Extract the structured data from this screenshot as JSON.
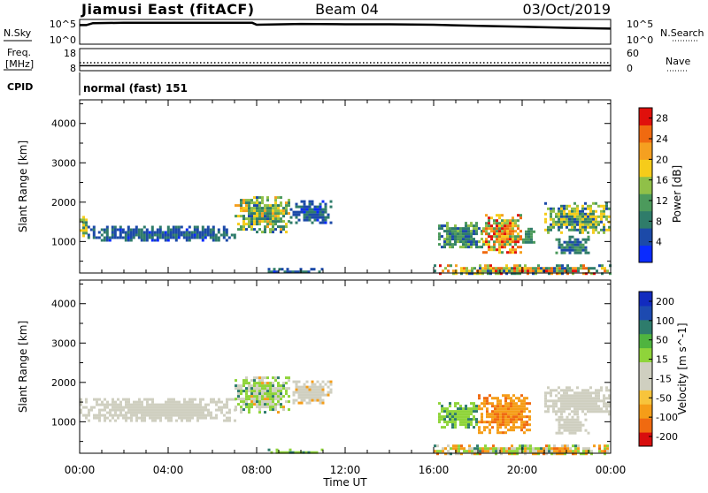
{
  "header": {
    "station": "Jiamusi East (fitACF)",
    "beam": "Beam 04",
    "date": "03/Oct/2019"
  },
  "labels": {
    "nsky": "N.Sky",
    "nsearch": "N.Search",
    "freq_line1": "Freq.",
    "freq_line2": "[MHz]",
    "nave": "Nave",
    "cpid": "CPID",
    "cpid_value": "normal (fast) 151",
    "nsky_tick_top": "10^5",
    "nsky_tick_bottom": "10^0",
    "nsearch_tick_top": "10^5",
    "nsearch_tick_bottom": "10^0",
    "freq_tick_top": "18",
    "freq_tick_bottom": "8",
    "nave_tick_top": "60",
    "nave_tick_bottom": "0"
  },
  "colors": {
    "power": [
      "#0a2bff",
      "#1c4aa8",
      "#2f7c6a",
      "#4c9a5c",
      "#90c048",
      "#f6cc1a",
      "#f5a020",
      "#f06a10",
      "#e0100c"
    ],
    "velocity": [
      "#d80e0e",
      "#f06a10",
      "#f59d18",
      "#f7c43c",
      "#cfcfc0",
      "#cfcfc0",
      "#8fd43a",
      "#4fb43f",
      "#2e7c6c",
      "#1d4ab0",
      "#122bbf"
    ]
  },
  "chart_data": [
    {
      "type": "line",
      "title": "N.Sky / N.Search",
      "x_range": [
        "00:00",
        "24:00"
      ],
      "y_scale": "log",
      "series": [
        {
          "name": "N.Sky",
          "x": [
            0,
            0.3,
            0.6,
            2,
            4,
            6,
            7.8,
            8,
            10,
            12,
            14,
            16,
            18,
            20,
            22,
            24
          ],
          "y": [
            4.0,
            4.0,
            4.5,
            4.6,
            4.6,
            4.6,
            4.6,
            4.1,
            4.3,
            4.2,
            4.2,
            4.1,
            3.8,
            3.6,
            3.3,
            3.1
          ]
        }
      ]
    },
    {
      "type": "line",
      "title": "Freq. / Nave",
      "x_range": [
        "00:00",
        "24:00"
      ],
      "series": [
        {
          "name": "Freq.",
          "y_const": 10
        },
        {
          "name": "Nave",
          "y_const": 21
        }
      ]
    },
    {
      "type": "heatmap",
      "title": "Power [dB]",
      "ylabel": "Slant Range [km]",
      "xlabel": "Time UT",
      "x_ticks": [
        "00:00",
        "04:00",
        "08:00",
        "12:00",
        "16:00",
        "20:00",
        "00:00"
      ],
      "y_ticks": [
        1000,
        2000,
        3000,
        4000
      ],
      "ylim": [
        200,
        4600
      ],
      "colorbar_label": "Power [dB]",
      "colorbar_ticks": [
        4,
        8,
        12,
        16,
        20,
        24,
        28
      ],
      "colorbar_range": [
        0,
        30
      ],
      "patches": [
        {
          "t0": 0.0,
          "t1": 0.35,
          "r0": 1100,
          "r1": 1650,
          "vmin": 8,
          "vmax": 20
        },
        {
          "t0": 0.35,
          "t1": 7.0,
          "r0": 1050,
          "r1": 1400,
          "vmin": 3,
          "vmax": 9
        },
        {
          "t0": 7.0,
          "t1": 9.5,
          "r0": 1250,
          "r1": 2150,
          "vmin": 6,
          "vmax": 22
        },
        {
          "t0": 9.5,
          "t1": 11.3,
          "r0": 1500,
          "r1": 2050,
          "vmin": 3,
          "vmax": 10
        },
        {
          "t0": 16.2,
          "t1": 18.2,
          "r0": 850,
          "r1": 1500,
          "vmin": 4,
          "vmax": 16
        },
        {
          "t0": 18.2,
          "t1": 20.0,
          "r0": 750,
          "r1": 1700,
          "vmin": 10,
          "vmax": 30
        },
        {
          "t0": 20.0,
          "t1": 20.5,
          "r0": 950,
          "r1": 1350,
          "vmin": 6,
          "vmax": 14
        },
        {
          "t0": 21.0,
          "t1": 24.0,
          "r0": 1250,
          "r1": 2000,
          "vmin": 4,
          "vmax": 20
        },
        {
          "t0": 21.5,
          "t1": 23.0,
          "r0": 700,
          "r1": 1150,
          "vmin": 4,
          "vmax": 12
        },
        {
          "t0": 8.5,
          "t1": 11.0,
          "r0": 200,
          "r1": 330,
          "vmin": 3,
          "vmax": 8
        },
        {
          "t0": 16.0,
          "t1": 24.0,
          "r0": 200,
          "r1": 420,
          "vmin": 4,
          "vmax": 28
        }
      ]
    },
    {
      "type": "heatmap",
      "title": "Velocity [m s^-1]",
      "ylabel": "Slant Range [km]",
      "xlabel": "Time UT",
      "x_ticks": [
        "00:00",
        "04:00",
        "08:00",
        "12:00",
        "16:00",
        "20:00",
        "00:00"
      ],
      "y_ticks": [
        1000,
        2000,
        3000,
        4000
      ],
      "ylim": [
        200,
        4600
      ],
      "colorbar_label": "Velocity [m s^-1]",
      "colorbar_ticks": [
        200,
        100,
        50,
        15,
        -15,
        -50,
        -100,
        -200
      ],
      "patches": [
        {
          "t0": 0.0,
          "t1": 7.0,
          "r0": 1050,
          "r1": 1600,
          "vmin": -10,
          "vmax": 10
        },
        {
          "t0": 7.0,
          "t1": 9.5,
          "r0": 1250,
          "r1": 2150,
          "vmin": -20,
          "vmax": 60
        },
        {
          "t0": 9.5,
          "t1": 11.3,
          "r0": 1500,
          "r1": 2050,
          "vmin": -20,
          "vmax": 10
        },
        {
          "t0": 16.2,
          "t1": 18.0,
          "r0": 850,
          "r1": 1500,
          "vmin": 20,
          "vmax": 60
        },
        {
          "t0": 18.0,
          "t1": 20.3,
          "r0": 750,
          "r1": 1700,
          "vmin": -60,
          "vmax": -20
        },
        {
          "t0": 21.0,
          "t1": 24.0,
          "r0": 1200,
          "r1": 1900,
          "vmin": -10,
          "vmax": 10
        },
        {
          "t0": 21.5,
          "t1": 23.0,
          "r0": 700,
          "r1": 1150,
          "vmin": -15,
          "vmax": 10
        },
        {
          "t0": 8.5,
          "t1": 11.0,
          "r0": 200,
          "r1": 320,
          "vmin": 20,
          "vmax": 60
        },
        {
          "t0": 16.0,
          "t1": 24.0,
          "r0": 200,
          "r1": 420,
          "vmin": -60,
          "vmax": 60
        }
      ]
    }
  ]
}
